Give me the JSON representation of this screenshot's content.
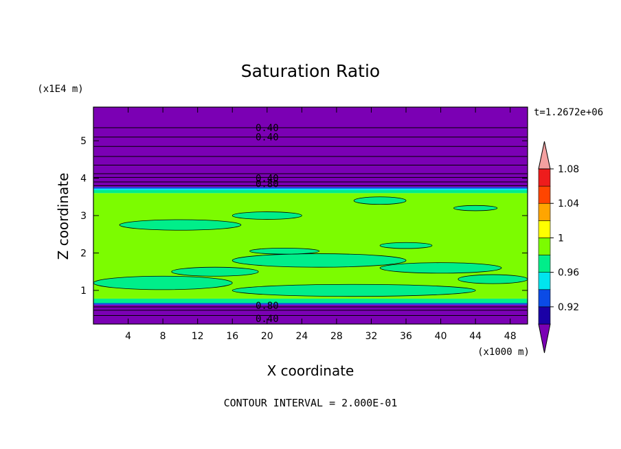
{
  "chart_data": {
    "type": "heatmap",
    "title": "Saturation Ratio",
    "xlabel": "X coordinate",
    "ylabel": "Z coordinate",
    "x_unit_label": "(x1000 m)",
    "y_unit_label": "(x1E4 m)",
    "time_label": "t=1.2672e+06",
    "footer": "CONTOUR INTERVAL = 2.000E-01",
    "xlim": [
      0,
      50
    ],
    "ylim": [
      0.1,
      5.9
    ],
    "xticks": [
      4,
      8,
      12,
      16,
      20,
      24,
      28,
      32,
      36,
      40,
      44,
      48
    ],
    "yticks": [
      1,
      2,
      3,
      4,
      5
    ],
    "colorbar": {
      "levels": [
        0.92,
        0.96,
        1,
        1.04,
        1.08
      ],
      "level_labels": [
        "0.92",
        "0.96",
        "1",
        "1.04",
        "1.08"
      ],
      "colors": [
        "#7b00b4",
        "#1a00a6",
        "#0b4be6",
        "#00e5ee",
        "#00ee8a",
        "#7cfc00",
        "#ffff00",
        "#ffa500",
        "#ff4500",
        "#ee1c1c",
        "#f4a0a0"
      ]
    },
    "bands": [
      {
        "z0": 0.1,
        "z1": 0.62,
        "color": "#7b00b4"
      },
      {
        "z0": 0.62,
        "z1": 0.66,
        "color": "#0b4be6"
      },
      {
        "z0": 0.66,
        "z1": 0.78,
        "color": "#00ee8a"
      },
      {
        "z0": 0.78,
        "z1": 3.6,
        "color": "#7cfc00"
      },
      {
        "z0": 3.6,
        "z1": 3.68,
        "color": "#00ee8a"
      },
      {
        "z0": 3.68,
        "z1": 3.72,
        "color": "#00e5ee"
      },
      {
        "z0": 3.72,
        "z1": 3.76,
        "color": "#0b4be6"
      },
      {
        "z0": 3.76,
        "z1": 5.9,
        "color": "#7b00b4"
      }
    ],
    "contour_labels": [
      {
        "x": 20,
        "z": 5.35,
        "text": "0.40"
      },
      {
        "x": 20,
        "z": 5.1,
        "text": "0.40"
      },
      {
        "x": 20,
        "z": 4.0,
        "text": "0.40"
      },
      {
        "x": 20,
        "z": 3.85,
        "text": "0.80"
      },
      {
        "x": 20,
        "z": 0.6,
        "text": "0.80"
      },
      {
        "x": 20,
        "z": 0.25,
        "text": "0.40"
      }
    ],
    "contour_lines_z": [
      0.33,
      0.47,
      0.56,
      3.8,
      3.9,
      4.02,
      4.12,
      4.35,
      4.58,
      4.85,
      5.1,
      5.35
    ]
  }
}
